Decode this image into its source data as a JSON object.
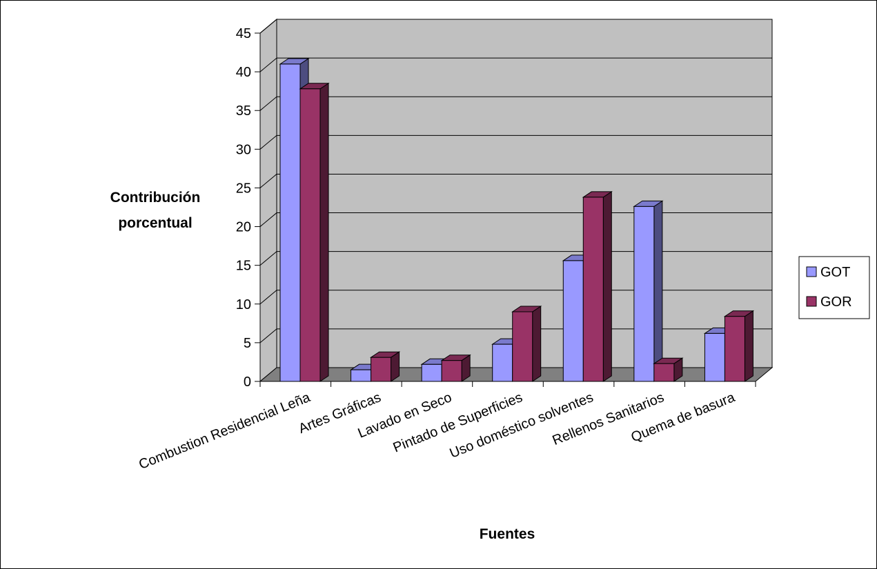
{
  "chart_data": {
    "type": "bar",
    "title": "",
    "xlabel": "Fuentes",
    "ylabel_lines": [
      "Contribución",
      "porcentual"
    ],
    "categories": [
      "Combustion Residencial Leña",
      "Artes Gráficas",
      "Lavado en Seco",
      "Pintado de Superficies",
      "Uso doméstico solventes",
      "Rellenos Sanitarios",
      "Quema de basura"
    ],
    "series": [
      {
        "name": "GOT",
        "color": "#9999FF",
        "values": [
          41,
          1.5,
          2.2,
          4.8,
          15.6,
          22.6,
          6.2
        ]
      },
      {
        "name": "GOR",
        "color": "#993366",
        "values": [
          37.8,
          3.1,
          2.7,
          9,
          23.8,
          2.3,
          8.4
        ]
      }
    ],
    "ylim": [
      0,
      45
    ],
    "yticks": [
      "0",
      "5",
      "10",
      "15",
      "20",
      "25",
      "30",
      "35",
      "40",
      "45"
    ],
    "grid": true,
    "legend_position": "right",
    "style": "3d-clustered-column",
    "wall_color": "#C0C0C0",
    "floor_color": "#808080"
  }
}
